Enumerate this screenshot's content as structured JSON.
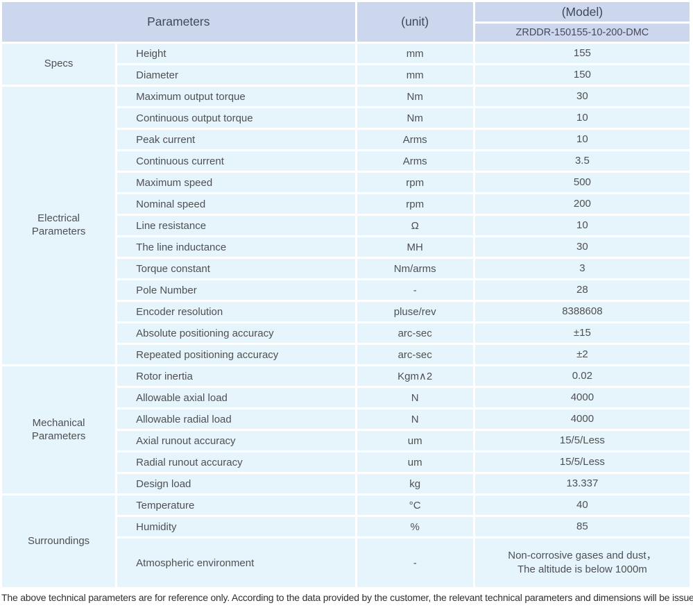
{
  "table": {
    "header": {
      "parameters_label": "Parameters",
      "unit_label": "(unit)",
      "model_label": "(Model)",
      "model_value": "ZRDDR-150155-10-200-DMC"
    },
    "sections": [
      {
        "group": "Specs",
        "rows": [
          {
            "param": "Height",
            "unit": "mm",
            "value": "155"
          },
          {
            "param": "Diameter",
            "unit": "mm",
            "value": "150"
          }
        ]
      },
      {
        "group": "Electrical\nParameters",
        "rows": [
          {
            "param": "Maximum output torque",
            "unit": "Nm",
            "value": "30"
          },
          {
            "param": "Continuous output torque",
            "unit": "Nm",
            "value": "10"
          },
          {
            "param": "Peak current",
            "unit": "Arms",
            "value": "10"
          },
          {
            "param": "Continuous current",
            "unit": "Arms",
            "value": "3.5"
          },
          {
            "param": "Maximum speed",
            "unit": "rpm",
            "value": "500"
          },
          {
            "param": "Nominal speed",
            "unit": "rpm",
            "value": "200"
          },
          {
            "param": "Line resistance",
            "unit": "Ω",
            "value": "10"
          },
          {
            "param": "The line inductance",
            "unit": "MH",
            "value": "30"
          },
          {
            "param": "Torque constant",
            "unit": "Nm/arms",
            "value": "3"
          },
          {
            "param": "Pole Number",
            "unit": "-",
            "value": "28"
          },
          {
            "param": "Encoder resolution",
            "unit": "pluse/rev",
            "value": "8388608"
          },
          {
            "param": "Absolute positioning accuracy",
            "unit": "arc-sec",
            "value": "±15"
          },
          {
            "param": "Repeated positioning accuracy",
            "unit": "arc-sec",
            "value": "±2"
          }
        ]
      },
      {
        "group": "Mechanical\nParameters",
        "rows": [
          {
            "param": "Rotor inertia",
            "unit": "Kgm∧2",
            "value": "0.02"
          },
          {
            "param": "Allowable axial load",
            "unit": "N",
            "value": "4000"
          },
          {
            "param": "Allowable radial load",
            "unit": "N",
            "value": "4000"
          },
          {
            "param": "Axial runout accuracy",
            "unit": "um",
            "value": "15/5/Less"
          },
          {
            "param": "Radial runout accuracy",
            "unit": "um",
            "value": "15/5/Less"
          },
          {
            "param": "Design load",
            "unit": "kg",
            "value": "13.337"
          }
        ]
      },
      {
        "group": "Surroundings",
        "rows": [
          {
            "param": "Temperature",
            "unit": "°C",
            "value": "40"
          },
          {
            "param": "Humidity",
            "unit": "%",
            "value": "85"
          },
          {
            "param": "Atmospheric environment",
            "unit": "-",
            "value": "Non-corrosive gases and dust，\nThe altitude is below 1000m",
            "tall": true
          }
        ]
      }
    ],
    "footnote": "The above technical parameters are for reference only. According to the data provided by the customer, the relevant technical parameters and dimensions will be issued."
  },
  "colors": {
    "header_bg": "#ccd7ee",
    "row_bg": "#e6f4fc",
    "separator": "#ffffff",
    "text": "#4e5052"
  }
}
